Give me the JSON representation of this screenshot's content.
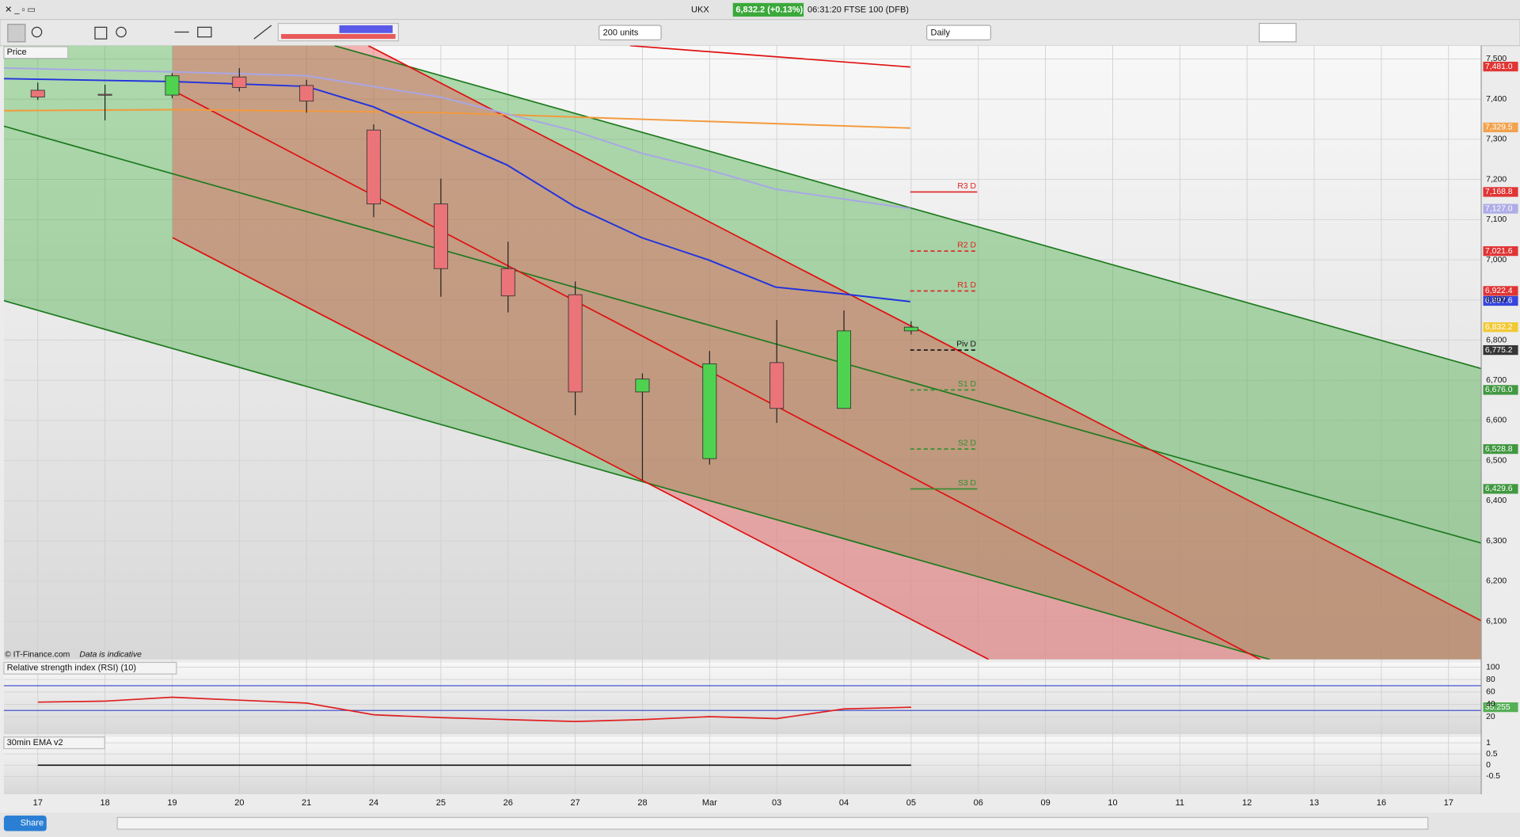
{
  "window": {
    "title": "UKX",
    "quote": "6,832.2 (+0.13%)",
    "status": "06:31:20 FTSE 100 (DFB)"
  },
  "toolbar": {
    "units": "200 units",
    "interval": "Daily"
  },
  "footer": {
    "share": "Share"
  },
  "chart_data": [
    {
      "type": "candlestick",
      "title": "Price",
      "credit": "© IT-Finance.com",
      "note": "Data is indicative",
      "categories": [
        "17",
        "18",
        "19",
        "20",
        "21",
        "24",
        "25",
        "26",
        "27",
        "28",
        "Mar",
        "03",
        "04",
        "05",
        "06",
        "09",
        "10",
        "11",
        "12",
        "13",
        "16",
        "17"
      ],
      "open": [
        7422,
        7412,
        7410,
        7455,
        7434,
        7323,
        7139,
        6978,
        6913,
        6671,
        6505,
        6744,
        6630,
        6823,
        null,
        null,
        null,
        null,
        null,
        null,
        null,
        null
      ],
      "high": [
        7441,
        7436,
        7465,
        7477,
        7448,
        7337,
        7202,
        7045,
        6946,
        6717,
        6773,
        6850,
        6874,
        6847,
        null,
        null,
        null,
        null,
        null,
        null,
        null,
        null
      ],
      "low": [
        7398,
        7347,
        7402,
        7419,
        7366,
        7106,
        6908,
        6869,
        6613,
        6452,
        6490,
        6594,
        6630,
        6814,
        null,
        null,
        null,
        null,
        null,
        null,
        null,
        null
      ],
      "close": [
        7405,
        7411,
        7458,
        7429,
        7395,
        7139,
        6978,
        6910,
        6671,
        6703,
        6741,
        6630,
        6823,
        6832.2,
        null,
        null,
        null,
        null,
        null,
        null,
        null,
        null
      ],
      "up_color": "#4fd24f",
      "down_color": "#ea7478",
      "ylim": [
        6005,
        7533
      ],
      "yticks": [
        {
          "value": 7500,
          "label": "7,500"
        },
        {
          "value": 7400,
          "label": "7,400"
        },
        {
          "value": 7300,
          "label": "7,300"
        },
        {
          "value": 7200,
          "label": "7,200"
        },
        {
          "value": 7100,
          "label": "7,100"
        },
        {
          "value": 7000,
          "label": "7,000"
        },
        {
          "value": 6900,
          "label": "6,900"
        },
        {
          "value": 6800,
          "label": "6,800"
        },
        {
          "value": 6700,
          "label": "6,700"
        },
        {
          "value": 6600,
          "label": "6,600"
        },
        {
          "value": 6500,
          "label": "6,500"
        },
        {
          "value": 6400,
          "label": "6,400"
        },
        {
          "value": 6300,
          "label": "6,300"
        },
        {
          "value": 6200,
          "label": "6,200"
        },
        {
          "value": 6100,
          "label": "6,100"
        }
      ],
      "price_labels": [
        {
          "value": 7481.0,
          "label": "7,481.0",
          "color": "#e02020"
        },
        {
          "value": 7329.5,
          "label": "7,329.5",
          "color": "#f39a3c"
        },
        {
          "value": 7168.8,
          "label": "7,168.8",
          "color": "#e02020"
        },
        {
          "value": 7127.0,
          "label": "7,127.0",
          "color": "#a9a6e6"
        },
        {
          "value": 7021.6,
          "label": "7,021.6",
          "color": "#e02020"
        },
        {
          "value": 6922.4,
          "label": "6,922.4",
          "color": "#e02020"
        },
        {
          "value": 6897.6,
          "label": "6,897.6",
          "color": "#2233dd"
        },
        {
          "value": 6832.2,
          "label": "6,832.2",
          "color": "#f3c521"
        },
        {
          "value": 6775.2,
          "label": "6,775.2",
          "color": "#222222"
        },
        {
          "value": 6676.0,
          "label": "6,676.0",
          "color": "#2f8f2f"
        },
        {
          "value": 6528.8,
          "label": "6,528.8",
          "color": "#2f8f2f"
        },
        {
          "value": 6429.6,
          "label": "6,429.6",
          "color": "#2f8f2f"
        }
      ],
      "pivots": [
        {
          "value": 7168.8,
          "label": "R3 D",
          "color": "#e02020",
          "dashed": false
        },
        {
          "value": 7021.6,
          "label": "R2 D",
          "color": "#e02020",
          "dashed": true
        },
        {
          "value": 6922.4,
          "label": "R1 D",
          "color": "#e02020",
          "dashed": true
        },
        {
          "value": 6775.2,
          "label": "Piv D",
          "color": "#111111",
          "dashed": true
        },
        {
          "value": 6676.0,
          "label": "S1 D",
          "color": "#2f8f2f",
          "dashed": true
        },
        {
          "value": 6528.8,
          "label": "S2 D",
          "color": "#2f8f2f",
          "dashed": true
        },
        {
          "value": 6429.6,
          "label": "S3 D",
          "color": "#2f8f2f",
          "dashed": false
        }
      ]
    },
    {
      "type": "line",
      "title": "Relative strength index (RSI) (10)",
      "values": [
        43.5,
        45.1,
        51.4,
        46.7,
        42,
        23.1,
        18.4,
        15.3,
        12.2,
        15.3,
        20,
        16.9,
        32.5,
        35.255,
        null,
        null,
        null,
        null,
        null,
        null,
        null,
        null
      ],
      "ylim": [
        -8.2,
        107.8
      ],
      "yticks": [
        100,
        80,
        60,
        40,
        20
      ],
      "levels": [
        70,
        30
      ],
      "color": "#e02020",
      "last_color": "#2fa02f"
    },
    {
      "type": "line",
      "title": "30min EMA v2",
      "values": [
        0,
        0,
        0,
        0,
        0,
        0,
        0,
        0,
        0,
        0,
        0,
        0,
        0,
        0,
        null,
        null,
        null,
        null,
        null,
        null,
        null,
        null
      ],
      "ylim": [
        -1.3,
        1.26
      ],
      "yticks": [
        1,
        0.5,
        0,
        -0.5
      ],
      "color": "#111111"
    }
  ]
}
